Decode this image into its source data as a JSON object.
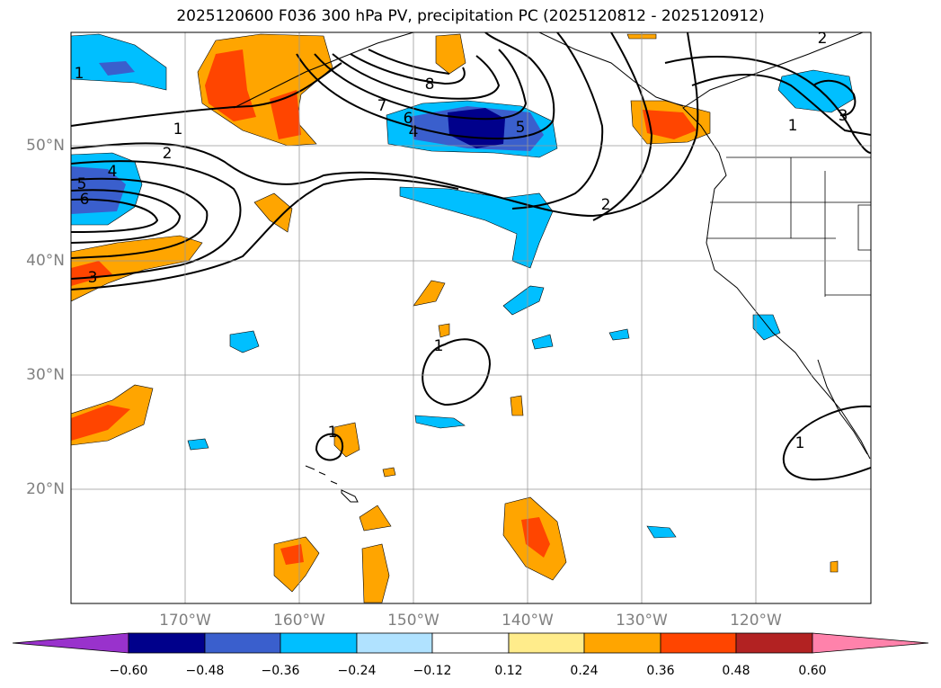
{
  "title": "2025120600 F036 300 hPa PV, precipitation PC (2025120812 - 2025120912)",
  "lat_labels": [
    "50°N",
    "40°N",
    "30°N",
    "20°N"
  ],
  "lon_labels": [
    "170°W",
    "160°W",
    "150°W",
    "140°W",
    "130°W",
    "120°W"
  ],
  "colorbar": {
    "ticks": [
      "−0.60",
      "−0.48",
      "−0.36",
      "−0.24",
      "−0.12",
      "0.12",
      "0.24",
      "0.36",
      "0.48",
      "0.60"
    ],
    "colors": [
      "#9932cc",
      "#00008b",
      "#3a5fcd",
      "#00bfff",
      "#b0e2ff",
      "#ffffff",
      "#ffec8b",
      "#ffa500",
      "#ff4500",
      "#b22222",
      "#ff82ab"
    ]
  },
  "contour_labels": [
    "1",
    "1",
    "2",
    "3",
    "4",
    "5",
    "6",
    "8",
    "7",
    "6",
    "4",
    "5",
    "2",
    "1",
    "1",
    "1",
    "2",
    "3",
    "1"
  ]
}
